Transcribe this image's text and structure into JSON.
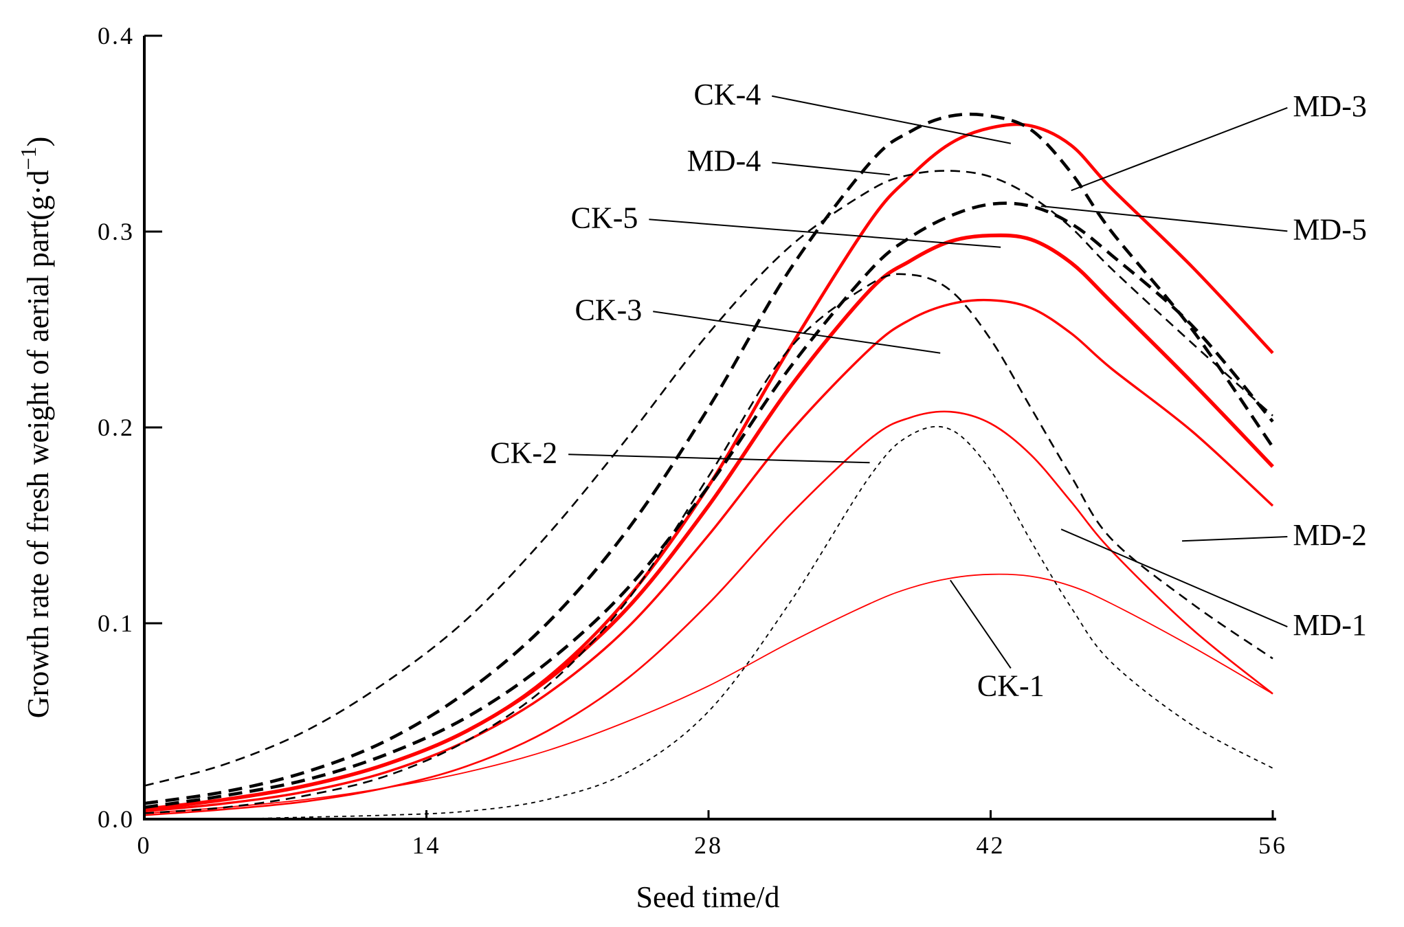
{
  "chart_data": {
    "type": "line",
    "title": "",
    "xlabel": "Seed time/d",
    "ylabel_main": "Growth rate of fresh weight of aerial part(g·d",
    "ylabel_sup": "−1",
    "ylabel_close": ")",
    "xlim": [
      0,
      56
    ],
    "ylim": [
      0,
      0.4
    ],
    "xticks": [
      0,
      14,
      28,
      42,
      56
    ],
    "xtick_labels": [
      "0",
      "14",
      "28",
      "42",
      "56"
    ],
    "yticks": [
      0,
      0.1,
      0.2,
      0.3,
      0.4
    ],
    "ytick_labels": [
      "0.0",
      "0.1",
      "0.2",
      "0.3",
      "0.4"
    ],
    "grid": false,
    "colors": {
      "ck": "#ff0000",
      "md": "#000000"
    },
    "x": [
      0,
      4,
      8,
      12,
      16,
      20,
      24,
      28,
      32,
      36,
      38,
      40,
      42,
      44,
      46,
      48,
      52,
      56
    ],
    "series": [
      {
        "name": "CK-1",
        "group": "ck",
        "style": "solid",
        "weight": 1,
        "values": [
          0.003,
          0.006,
          0.01,
          0.016,
          0.024,
          0.035,
          0.05,
          0.068,
          0.09,
          0.11,
          0.118,
          0.123,
          0.125,
          0.124,
          0.119,
          0.11,
          0.088,
          0.064
        ]
      },
      {
        "name": "CK-2",
        "group": "ck",
        "style": "solid",
        "weight": 2,
        "values": [
          0.002,
          0.005,
          0.009,
          0.016,
          0.027,
          0.045,
          0.072,
          0.11,
          0.155,
          0.194,
          0.205,
          0.208,
          0.202,
          0.186,
          0.162,
          0.137,
          0.097,
          0.064
        ]
      },
      {
        "name": "CK-3",
        "group": "ck",
        "style": "solid",
        "weight": 3,
        "values": [
          0.004,
          0.008,
          0.014,
          0.024,
          0.04,
          0.064,
          0.098,
          0.145,
          0.197,
          0.24,
          0.255,
          0.263,
          0.265,
          0.261,
          0.248,
          0.23,
          0.198,
          0.16
        ]
      },
      {
        "name": "CK-4",
        "group": "ck",
        "style": "solid",
        "weight": 4,
        "values": [
          0.005,
          0.01,
          0.017,
          0.028,
          0.045,
          0.072,
          0.113,
          0.17,
          0.24,
          0.305,
          0.328,
          0.345,
          0.353,
          0.354,
          0.344,
          0.322,
          0.282,
          0.238
        ]
      },
      {
        "name": "CK-5",
        "group": "ck",
        "style": "solid",
        "weight": 5,
        "values": [
          0.005,
          0.01,
          0.017,
          0.028,
          0.045,
          0.071,
          0.108,
          0.16,
          0.22,
          0.27,
          0.285,
          0.295,
          0.298,
          0.296,
          0.284,
          0.264,
          0.223,
          0.18
        ]
      },
      {
        "name": "MD-1",
        "group": "md",
        "style": "dash",
        "weight": 1,
        "values": [
          0.0,
          0.0,
          0.001,
          0.002,
          0.004,
          0.01,
          0.024,
          0.055,
          0.11,
          0.175,
          0.196,
          0.199,
          0.178,
          0.142,
          0.108,
          0.08,
          0.048,
          0.026
        ]
      },
      {
        "name": "MD-2",
        "group": "md",
        "style": "dash",
        "weight": 2,
        "values": [
          0.003,
          0.006,
          0.012,
          0.022,
          0.04,
          0.068,
          0.112,
          0.175,
          0.24,
          0.273,
          0.278,
          0.27,
          0.245,
          0.21,
          0.175,
          0.143,
          0.11,
          0.082
        ]
      },
      {
        "name": "MD-3",
        "group": "md",
        "style": "dash",
        "weight": 4,
        "values": [
          0.008,
          0.014,
          0.024,
          0.04,
          0.065,
          0.1,
          0.148,
          0.21,
          0.28,
          0.335,
          0.351,
          0.359,
          0.359,
          0.352,
          0.33,
          0.3,
          0.25,
          0.19
        ]
      },
      {
        "name": "MD-4",
        "group": "md",
        "style": "dash",
        "weight": 2,
        "values": [
          0.017,
          0.028,
          0.045,
          0.07,
          0.102,
          0.145,
          0.195,
          0.248,
          0.292,
          0.321,
          0.329,
          0.331,
          0.328,
          0.318,
          0.302,
          0.281,
          0.243,
          0.206
        ]
      },
      {
        "name": "MD-5",
        "group": "md",
        "style": "dash",
        "weight": 4,
        "values": [
          0.006,
          0.012,
          0.02,
          0.033,
          0.052,
          0.08,
          0.118,
          0.17,
          0.23,
          0.28,
          0.297,
          0.308,
          0.314,
          0.313,
          0.304,
          0.288,
          0.252,
          0.203
        ]
      }
    ],
    "annotations": [
      {
        "text": "CK-4",
        "label": [
          30.6,
          0.365
        ],
        "target": [
          43.0,
          0.345
        ]
      },
      {
        "text": "MD-4",
        "label": [
          30.6,
          0.331
        ],
        "target": [
          37.0,
          0.329
        ]
      },
      {
        "text": "CK-5",
        "label": [
          24.5,
          0.302
        ],
        "target": [
          42.5,
          0.292
        ]
      },
      {
        "text": "CK-3",
        "label": [
          24.7,
          0.255
        ],
        "target": [
          39.5,
          0.238
        ]
      },
      {
        "text": "CK-2",
        "label": [
          20.5,
          0.182
        ],
        "target": [
          36.0,
          0.182
        ]
      },
      {
        "text": "CK-1",
        "label": [
          43.0,
          0.063
        ],
        "target": [
          40.0,
          0.122
        ]
      },
      {
        "text": "MD-3",
        "label": [
          57.0,
          0.359
        ],
        "target": [
          46.0,
          0.321
        ]
      },
      {
        "text": "MD-5",
        "label": [
          57.0,
          0.296
        ],
        "target": [
          44.5,
          0.313
        ]
      },
      {
        "text": "MD-2",
        "label": [
          57.0,
          0.14
        ],
        "target": [
          51.5,
          0.142
        ]
      },
      {
        "text": "MD-1",
        "label": [
          57.0,
          0.094
        ],
        "target": [
          45.5,
          0.148
        ]
      }
    ]
  }
}
